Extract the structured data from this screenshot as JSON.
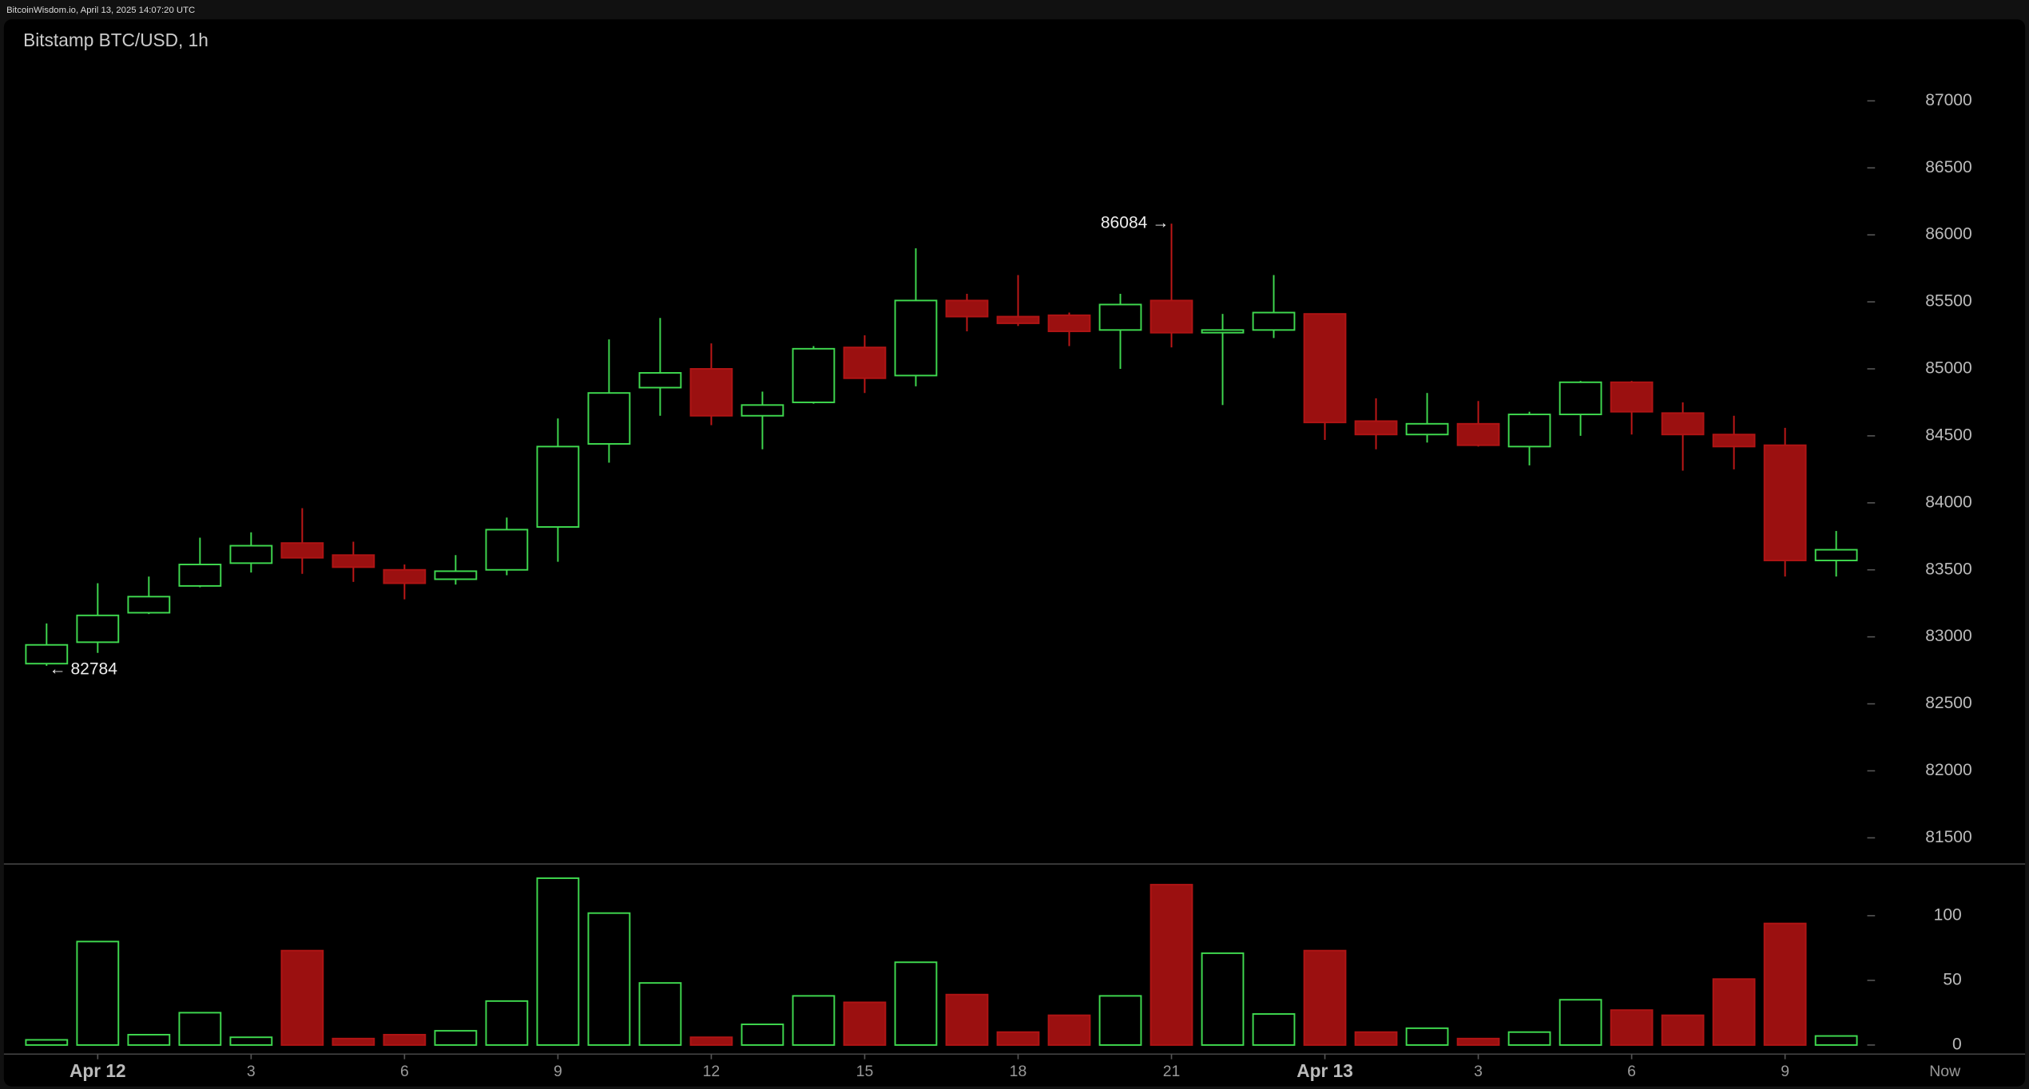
{
  "header": "BitcoinWisdom.io, April 13, 2025 14:07:20 UTC",
  "now_label": "Now",
  "chart_data": [
    {
      "type": "candlestick",
      "title": "Bitstamp BTC/USD, 1h",
      "categories": [
        null,
        "Apr 12",
        null,
        null,
        "3",
        null,
        null,
        "6",
        null,
        null,
        "9",
        null,
        null,
        "12",
        null,
        null,
        "15",
        null,
        null,
        "18",
        null,
        null,
        "21",
        null,
        null,
        "Apr 13",
        null,
        null,
        "3",
        null,
        null,
        "6",
        null,
        null,
        "9",
        null
      ],
      "open": [
        82800,
        82960,
        83180,
        83380,
        83550,
        83700,
        83610,
        83500,
        83430,
        83500,
        83820,
        84440,
        84860,
        85000,
        84650,
        84750,
        85160,
        84950,
        85510,
        85390,
        85400,
        85290,
        85510,
        85270,
        85290,
        85410,
        84610,
        84510,
        84590,
        84420,
        84660,
        84900,
        84670,
        84510,
        84430,
        83570
      ],
      "high": [
        83100,
        83400,
        83450,
        83740,
        83780,
        83960,
        83710,
        83540,
        83610,
        83890,
        84630,
        85220,
        85380,
        85190,
        84830,
        85170,
        85250,
        85900,
        85560,
        85700,
        85420,
        85560,
        86084,
        85410,
        85700,
        85410,
        84780,
        84820,
        84760,
        84680,
        84910,
        84910,
        84750,
        84650,
        84560,
        83790
      ],
      "low": [
        82784,
        82880,
        83170,
        83370,
        83480,
        83470,
        83410,
        83280,
        83390,
        83460,
        83560,
        84300,
        84650,
        84580,
        84400,
        84740,
        84820,
        84870,
        85280,
        85320,
        85170,
        85000,
        85160,
        84730,
        85230,
        84470,
        84400,
        84450,
        84420,
        84280,
        84500,
        84510,
        84240,
        84250,
        83450,
        83450
      ],
      "close": [
        82940,
        83160,
        83300,
        83540,
        83680,
        83590,
        83520,
        83400,
        83490,
        83800,
        84420,
        84820,
        84970,
        84650,
        84730,
        85150,
        84930,
        85510,
        85390,
        85340,
        85280,
        85480,
        85270,
        85290,
        85420,
        84600,
        84510,
        84590,
        84430,
        84660,
        84900,
        84680,
        84510,
        84420,
        83570,
        83650
      ],
      "up_color": "#3fd94f",
      "down_color": "#9b1010",
      "annotations": [
        {
          "text": "86084 →",
          "value": 86084,
          "index": 22
        },
        {
          "text": "← 82784",
          "value": 82784,
          "index": 0
        }
      ],
      "ylim": [
        81305,
        87608
      ],
      "yticks": [
        81500,
        82000,
        82500,
        83000,
        83500,
        84000,
        84500,
        85000,
        85500,
        86000,
        86500,
        87000
      ]
    },
    {
      "type": "volume",
      "values": [
        4,
        80,
        8,
        25,
        6,
        73,
        5,
        8,
        11,
        34,
        129,
        102,
        48,
        6,
        16,
        38,
        33,
        64,
        39,
        10,
        23,
        38,
        124,
        71,
        24,
        73,
        10,
        13,
        5,
        10,
        35,
        27,
        23,
        51,
        94,
        7
      ],
      "ylim": [
        -7,
        140
      ],
      "yticks": [
        0,
        50,
        100
      ]
    }
  ]
}
